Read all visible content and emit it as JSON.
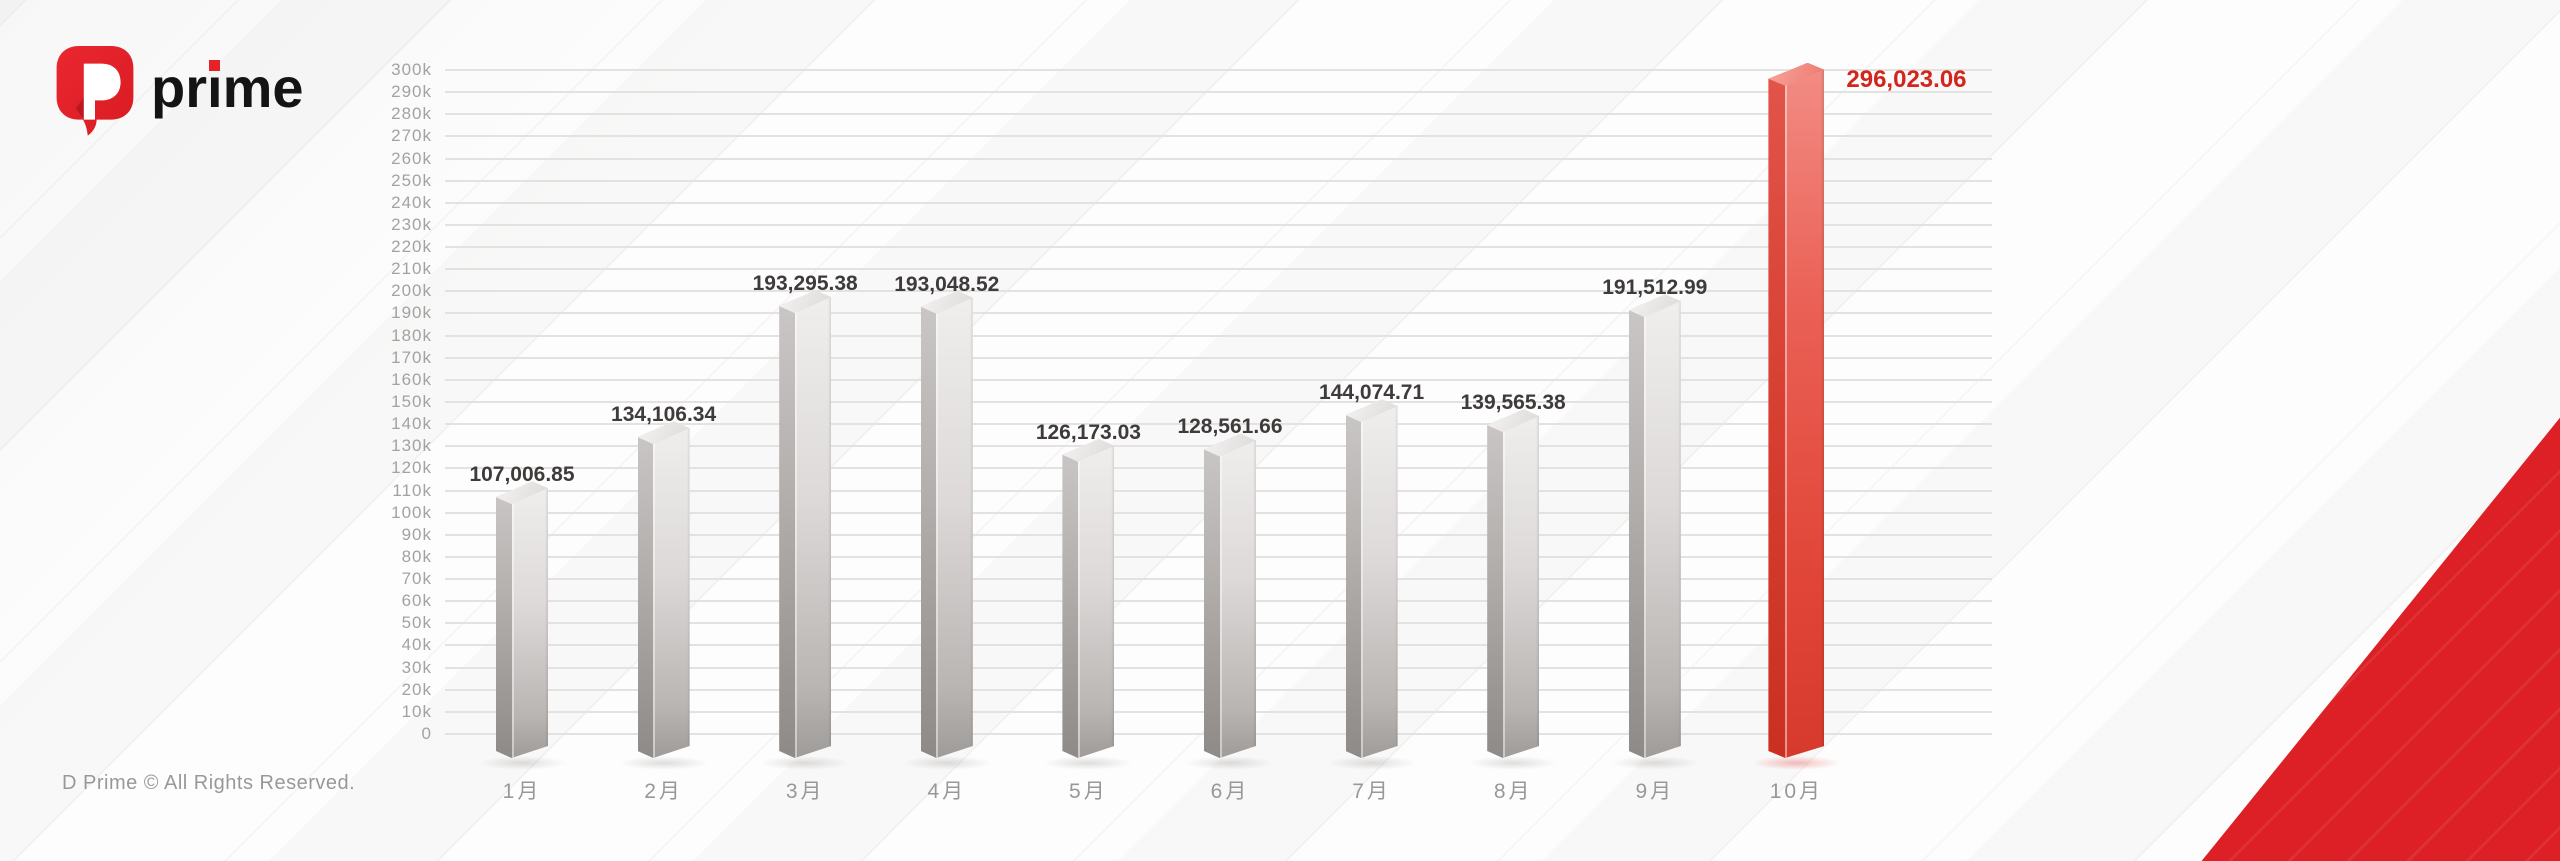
{
  "brand": {
    "logo_letter": "D",
    "name_prefix": "pr",
    "name_i": "ı",
    "name_suffix": "me"
  },
  "footer": {
    "copyright": "D Prime © All Rights Reserved."
  },
  "colors": {
    "accent_red": "#dc2026",
    "highlight_bar": "#e2473a",
    "gray_bar": "#c9c6c5",
    "value_label": "#3e3b3a",
    "highlight_value_label": "#d3251c",
    "axis_text": "#a4a2a1",
    "gridline": "#e4e2e1"
  },
  "chart_data": {
    "type": "bar",
    "title": "",
    "xlabel": "",
    "ylabel": "",
    "grid": true,
    "legend": false,
    "categories": [
      "1月",
      "2月",
      "3月",
      "4月",
      "5月",
      "6月",
      "7月",
      "8月",
      "9月",
      "10月"
    ],
    "values": [
      107006.85,
      134106.34,
      193295.38,
      193048.52,
      126173.03,
      128561.66,
      144074.71,
      139565.38,
      191512.99,
      296023.06
    ],
    "value_labels": [
      "107,006.85",
      "134,106.34",
      "193,295.38",
      "193,048.52",
      "126,173.03",
      "128,561.66",
      "144,074.71",
      "139,565.38",
      "191,512.99",
      "296,023.06"
    ],
    "highlight_index": 9,
    "ylim": [
      0,
      300000
    ],
    "ytick_step": 10000,
    "ytick_labels": [
      "0",
      "10k",
      "20k",
      "30k",
      "40k",
      "50k",
      "60k",
      "70k",
      "80k",
      "90k",
      "100k",
      "110k",
      "120k",
      "130k",
      "140k",
      "150k",
      "160k",
      "170k",
      "180k",
      "190k",
      "200k",
      "210k",
      "220k",
      "230k",
      "240k",
      "250k",
      "260k",
      "270k",
      "280k",
      "290k",
      "300k"
    ]
  }
}
